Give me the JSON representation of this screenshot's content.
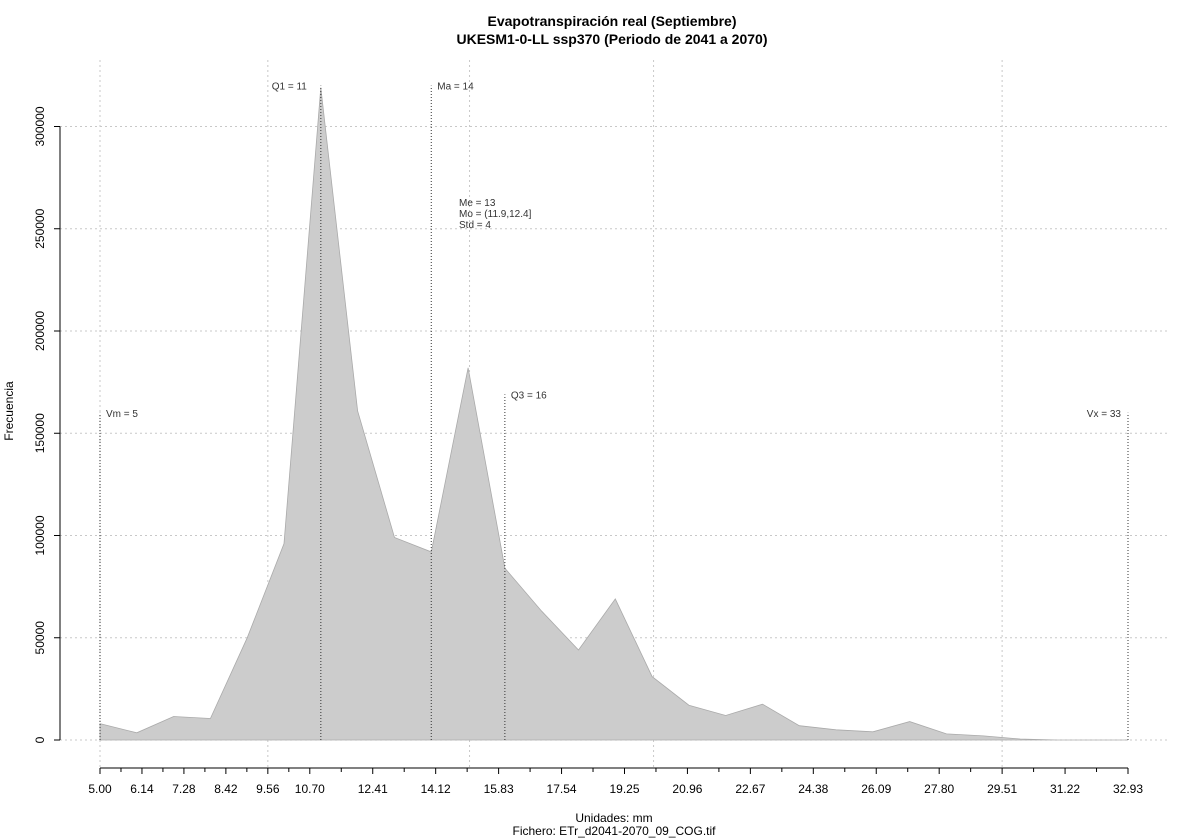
{
  "chart_data": {
    "type": "area",
    "title": "Evapotranspiración real (Septiembre)",
    "subtitle": "UKESM1-0-LL ssp370 (Periodo de 2041 a 2070)",
    "xlabel": "Unidades: mm",
    "ylabel": "Frecuencia",
    "caption": "Fichero: ETr_d2041-2070_09_COG.tif",
    "xlim": [
      5.0,
      32.93
    ],
    "ylim": [
      0,
      320000
    ],
    "x_ticks": [
      "5.00",
      "6.14",
      "7.28",
      "8.42",
      "9.56",
      "10.70",
      "12.41",
      "14.12",
      "15.83",
      "17.54",
      "19.25",
      "20.96",
      "22.67",
      "24.38",
      "26.09",
      "27.80",
      "29.51",
      "31.22",
      "32.93"
    ],
    "y_ticks": [
      "0",
      "50000",
      "100000",
      "150000",
      "200000",
      "250000",
      "300000"
    ],
    "grid": true,
    "fill_color": "#cccccc",
    "x": [
      5.0,
      6.0,
      7.0,
      8.0,
      9.0,
      10.0,
      11.0,
      12.0,
      13.0,
      14.0,
      15.0,
      16.0,
      17.0,
      18.0,
      19.0,
      20.0,
      21.0,
      22.0,
      23.0,
      24.0,
      25.0,
      26.0,
      27.0,
      28.0,
      29.0,
      30.0,
      31.0,
      32.0,
      32.93
    ],
    "values": [
      8000,
      3500,
      11500,
      10500,
      50000,
      96000,
      319000,
      161000,
      99000,
      92000,
      182000,
      84000,
      63000,
      44000,
      69000,
      31000,
      17000,
      12000,
      17500,
      7000,
      5000,
      4000,
      9000,
      3000,
      2000,
      500,
      0,
      0,
      0
    ],
    "markers": [
      {
        "label": "Vm = 5",
        "x": 5.0,
        "top": 160000
      },
      {
        "label": "Q1 = 11",
        "x": 11.0,
        "top": 320000
      },
      {
        "label": "Ma = 14",
        "x": 14.0,
        "top": 320000
      },
      {
        "label": "Q3 = 16",
        "x": 16.0,
        "top": 169000
      },
      {
        "label": "Vx = 33",
        "x": 32.93,
        "top": 160000
      }
    ],
    "stats": [
      "Me = 13",
      "Mo = (11.9,12.4]",
      "Std = 4"
    ]
  }
}
